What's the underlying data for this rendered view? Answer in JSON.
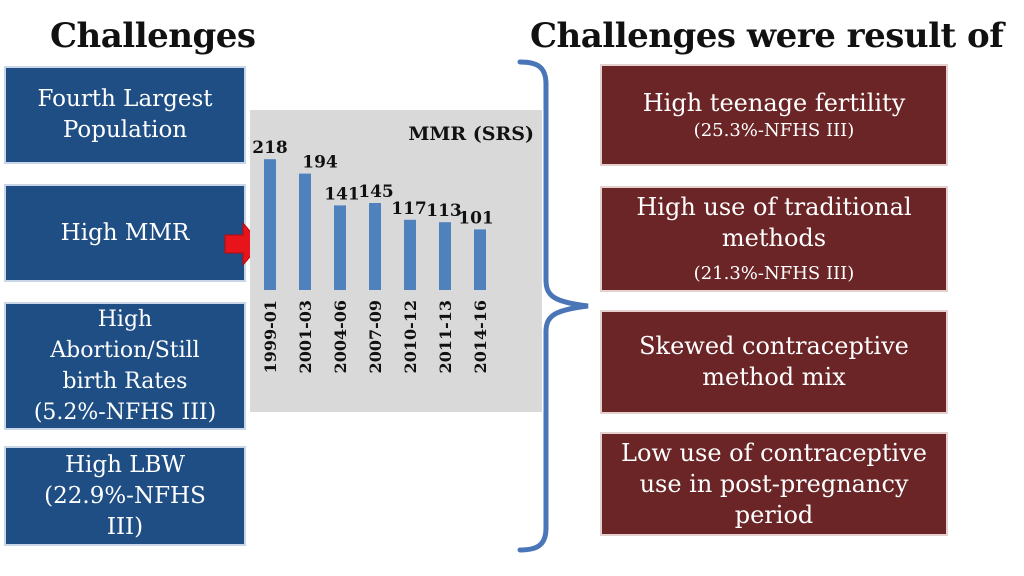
{
  "headings": {
    "left": "Challenges",
    "right": "Challenges were result of"
  },
  "left_boxes": [
    {
      "lines": [
        "Fourth Largest",
        "Population"
      ]
    },
    {
      "lines": [
        "High MMR"
      ]
    },
    {
      "lines": [
        "High",
        "Abortion/Still",
        "birth Rates",
        "(5.2%-NFHS III)"
      ]
    },
    {
      "lines": [
        "High LBW",
        "(22.9%-NFHS",
        "III)"
      ]
    }
  ],
  "right_boxes": [
    {
      "lines": [
        "High teenage fertility"
      ],
      "sub": "(25.3%-NFHS III)"
    },
    {
      "lines": [
        "High use of traditional",
        "methods"
      ],
      "sub": "(21.3%-NFHS III)"
    },
    {
      "lines": [
        "Skewed contraceptive",
        "method mix"
      ]
    },
    {
      "lines": [
        "Low use of contraceptive",
        "use in post-pregnancy",
        "period"
      ]
    }
  ],
  "colors": {
    "left_box_bg": "#1f4e85",
    "right_box_bg": "#6b2527",
    "chart_bg": "#d9d9d9",
    "bar": "#4f81bd",
    "arrow": "#e8141b",
    "brace": "#4a76b8"
  },
  "icons": {
    "arrow": "right-arrow-icon",
    "brace": "right-curly-brace-icon"
  },
  "chart_data": {
    "type": "bar",
    "title": "MMR (SRS)",
    "categories": [
      "1999-01",
      "2001-03",
      "2004-06",
      "2007-09",
      "2010-12",
      "2011-13",
      "2014-16"
    ],
    "values": [
      218,
      194,
      141,
      145,
      117,
      113,
      101
    ],
    "xlabel": "",
    "ylabel": "",
    "ylim": [
      0,
      240
    ],
    "grid": false,
    "legend": "none",
    "data_labels": true
  }
}
